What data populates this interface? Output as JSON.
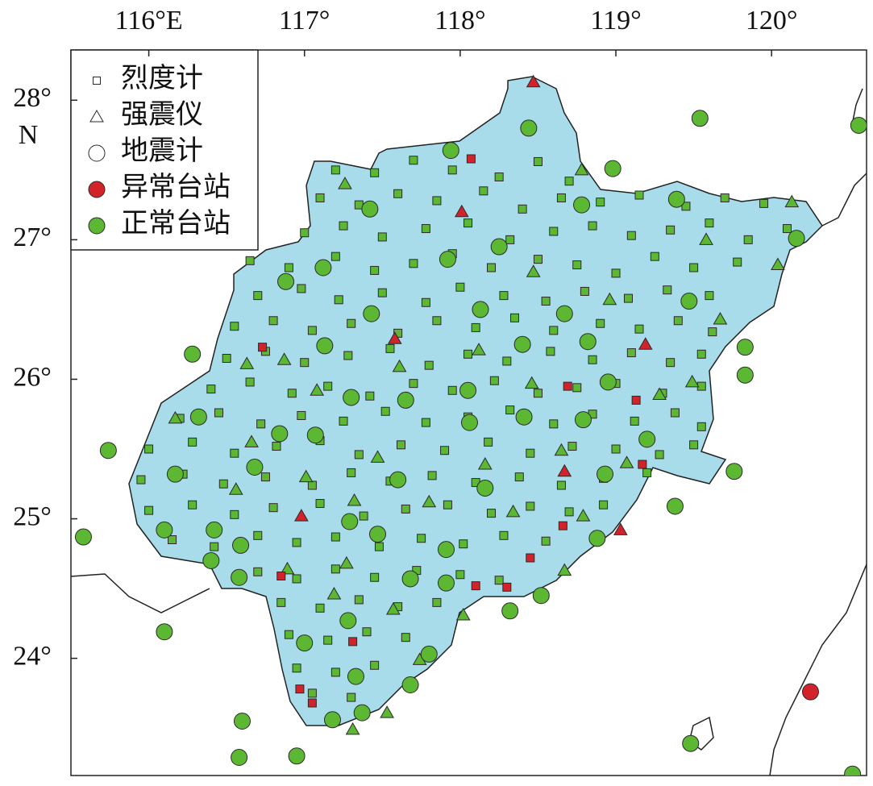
{
  "chart_data": {
    "type": "scatter",
    "xlim": [
      115.5,
      120.61
    ],
    "ylim": [
      23.16,
      28.36
    ],
    "xticks": [
      {
        "value": 116,
        "label": "116°E"
      },
      {
        "value": 117,
        "label": "117°"
      },
      {
        "value": 118,
        "label": "118°"
      },
      {
        "value": 119,
        "label": "119°"
      },
      {
        "value": 120,
        "label": "120°"
      }
    ],
    "yticks": [
      {
        "value": 28,
        "label": "28°"
      },
      {
        "value": 27,
        "label": "27°"
      },
      {
        "value": 26,
        "label": "26°"
      },
      {
        "value": 25,
        "label": "25°"
      },
      {
        "value": 24,
        "label": "24°"
      }
    ],
    "ylabel": "N",
    "legend_position": "upper left",
    "legend": {
      "markers": [
        {
          "name": "烈度计",
          "shape": "square"
        },
        {
          "name": "强震仪",
          "shape": "triangle"
        },
        {
          "name": "地震计",
          "shape": "circle"
        }
      ],
      "statuses": [
        {
          "name": "异常台站",
          "color": "#d2232a"
        },
        {
          "name": "正常台站",
          "color": "#5cb833"
        }
      ]
    },
    "series": [
      {
        "shape": "square",
        "color": "#5cb833",
        "x": [
          117.2,
          117.45,
          117.7,
          117.95,
          118.25,
          118.5,
          118.7,
          117.1,
          117.35,
          117.6,
          117.85,
          118.15,
          118.4,
          118.65,
          118.9,
          119.15,
          119.45,
          119.7,
          119.95,
          117.0,
          117.25,
          117.5,
          117.78,
          118.05,
          118.32,
          118.6,
          118.85,
          119.1,
          119.35,
          119.6,
          119.85,
          120.1,
          116.65,
          116.9,
          117.2,
          117.45,
          117.7,
          117.95,
          118.2,
          118.5,
          118.75,
          119.0,
          119.25,
          119.5,
          119.78,
          116.7,
          116.98,
          117.22,
          117.5,
          117.78,
          118.0,
          118.28,
          118.55,
          118.8,
          119.08,
          119.33,
          119.6,
          116.55,
          116.8,
          117.05,
          117.3,
          117.6,
          117.85,
          118.1,
          118.35,
          118.6,
          118.9,
          119.15,
          119.4,
          119.62,
          116.5,
          116.75,
          117.0,
          117.28,
          117.55,
          117.8,
          118.05,
          118.3,
          118.58,
          118.85,
          119.1,
          119.35,
          119.55,
          116.4,
          116.65,
          116.92,
          117.15,
          117.42,
          117.7,
          117.95,
          118.22,
          118.5,
          118.75,
          119.0,
          119.3,
          119.55,
          116.2,
          116.45,
          116.72,
          116.98,
          117.25,
          117.52,
          117.78,
          118.05,
          118.32,
          118.6,
          118.85,
          119.12,
          119.38,
          119.55,
          116.0,
          116.28,
          116.55,
          116.82,
          117.1,
          117.35,
          117.62,
          117.9,
          118.18,
          118.45,
          118.72,
          119.0,
          119.28,
          119.5,
          115.95,
          116.22,
          116.48,
          116.75,
          117.05,
          117.3,
          117.55,
          117.82,
          118.1,
          118.38,
          118.65,
          118.92,
          119.2,
          116.0,
          116.28,
          116.55,
          116.8,
          117.1,
          117.38,
          117.65,
          117.92,
          118.2,
          118.45,
          118.7,
          118.92,
          116.15,
          116.42,
          116.7,
          116.95,
          117.2,
          117.48,
          117.75,
          118.02,
          118.28,
          118.55,
          116.7,
          116.95,
          117.2,
          117.45,
          117.72,
          118.0,
          118.25,
          116.85,
          117.1,
          117.35,
          117.6,
          117.85,
          116.9,
          117.15,
          117.4,
          117.65,
          116.95,
          117.2,
          117.45,
          117.05,
          117.3
        ],
        "y": [
          27.5,
          27.48,
          27.57,
          27.5,
          27.45,
          27.56,
          27.42,
          27.3,
          27.25,
          27.33,
          27.28,
          27.35,
          27.22,
          27.3,
          27.27,
          27.32,
          27.24,
          27.3,
          27.26,
          27.05,
          27.1,
          27.02,
          27.08,
          27.12,
          27.0,
          27.06,
          27.1,
          27.03,
          27.07,
          27.12,
          27.0,
          27.08,
          26.85,
          26.8,
          26.88,
          26.78,
          26.83,
          26.9,
          26.8,
          26.86,
          26.82,
          26.76,
          26.88,
          26.8,
          26.84,
          26.6,
          26.65,
          26.57,
          26.62,
          26.55,
          26.66,
          26.6,
          26.56,
          26.63,
          26.58,
          26.64,
          26.6,
          26.38,
          26.42,
          26.35,
          26.4,
          26.33,
          26.42,
          26.37,
          26.44,
          26.35,
          26.4,
          26.36,
          26.42,
          26.34,
          26.15,
          26.2,
          26.12,
          26.17,
          26.22,
          26.1,
          26.18,
          26.13,
          26.2,
          26.14,
          26.19,
          26.12,
          26.18,
          25.93,
          25.98,
          25.9,
          25.95,
          25.88,
          25.97,
          25.92,
          25.99,
          25.9,
          25.94,
          25.97,
          25.9,
          25.95,
          25.72,
          25.76,
          25.68,
          25.74,
          25.7,
          25.77,
          25.69,
          25.73,
          25.78,
          25.68,
          25.75,
          25.7,
          25.76,
          25.66,
          25.5,
          25.55,
          25.47,
          25.52,
          25.56,
          25.46,
          25.53,
          25.49,
          25.55,
          25.47,
          25.52,
          25.5,
          25.46,
          25.53,
          25.28,
          25.32,
          25.25,
          25.3,
          25.24,
          25.33,
          25.27,
          25.31,
          25.26,
          25.3,
          25.24,
          25.29,
          25.33,
          25.06,
          25.1,
          25.03,
          25.08,
          25.11,
          25.02,
          25.07,
          25.1,
          25.04,
          25.09,
          25.05,
          25.1,
          24.85,
          24.8,
          24.88,
          24.83,
          24.87,
          24.8,
          24.86,
          24.82,
          24.88,
          24.84,
          24.62,
          24.57,
          24.64,
          24.58,
          24.63,
          24.6,
          24.56,
          24.4,
          24.36,
          24.42,
          24.37,
          24.4,
          24.17,
          24.13,
          24.19,
          24.15,
          23.93,
          23.9,
          23.95,
          23.75,
          23.72
        ]
      },
      {
        "shape": "triangle",
        "color": "#5cb833",
        "x": [
          117.26,
          118.78,
          120.13,
          119.58,
          120.04,
          118.47,
          118.96,
          119.67,
          116.87,
          116.63,
          117.61,
          117.08,
          118.12,
          118.46,
          119.28,
          119.49,
          116.17,
          116.66,
          117.47,
          118.16,
          118.65,
          119.07,
          116.56,
          117.01,
          117.32,
          117.8,
          118.34,
          118.79,
          116.89,
          117.27,
          117.19,
          117.57,
          118.02,
          118.67,
          117.74,
          117.31,
          117.53
        ],
        "y": [
          27.4,
          27.5,
          27.27,
          27.0,
          26.82,
          26.77,
          26.57,
          26.43,
          26.14,
          26.11,
          26.09,
          25.92,
          26.21,
          25.97,
          25.89,
          25.98,
          25.72,
          25.55,
          25.44,
          25.39,
          25.49,
          25.4,
          25.21,
          25.3,
          25.13,
          25.12,
          25.05,
          25.02,
          24.64,
          24.68,
          24.46,
          24.35,
          24.31,
          24.63,
          23.99,
          23.49,
          23.61
        ]
      },
      {
        "shape": "circle",
        "color": "#5cb833",
        "x": [
          118.44,
          119.54,
          120.56,
          117.94,
          118.98,
          118.78,
          117.42,
          119.39,
          120.16,
          118.25,
          117.92,
          117.12,
          116.88,
          118.13,
          117.43,
          118.67,
          119.47,
          116.28,
          117.13,
          118.4,
          118.82,
          119.83,
          118.05,
          117.65,
          117.3,
          118.95,
          119.83,
          118.06,
          118.41,
          118.79,
          116.32,
          116.84,
          117.07,
          115.74,
          116.68,
          119.2,
          116.17,
          117.6,
          118.16,
          118.93,
          119.76,
          119.38,
          117.29,
          116.1,
          116.42,
          115.58,
          116.59,
          117.47,
          118.88,
          116.4,
          116.58,
          117.91,
          117.68,
          117.91,
          116.1,
          117.28,
          118.32,
          118.52,
          117.0,
          117.8,
          117.33,
          117.68,
          116.6,
          116.58,
          116.95,
          119.48,
          120.52,
          117.18,
          117.37
        ],
        "y": [
          27.8,
          27.87,
          27.82,
          27.64,
          27.51,
          27.25,
          27.22,
          27.29,
          27.01,
          26.95,
          26.86,
          26.8,
          26.7,
          26.5,
          26.47,
          26.47,
          26.56,
          26.18,
          26.24,
          26.25,
          26.27,
          26.23,
          25.92,
          25.85,
          25.87,
          25.98,
          26.03,
          25.69,
          25.73,
          25.71,
          25.73,
          25.61,
          25.6,
          25.49,
          25.37,
          25.57,
          25.32,
          25.28,
          25.22,
          25.32,
          25.34,
          25.09,
          24.98,
          24.92,
          24.92,
          24.87,
          24.81,
          24.89,
          24.86,
          24.7,
          24.58,
          24.78,
          24.57,
          24.54,
          24.19,
          24.27,
          24.34,
          24.45,
          24.11,
          24.03,
          23.87,
          23.81,
          23.55,
          23.29,
          23.3,
          23.39,
          23.17,
          23.56,
          23.61
        ]
      },
      {
        "shape": "square",
        "color": "#d2232a",
        "x": [
          118.07,
          116.73,
          118.69,
          119.13,
          119.17,
          118.66,
          118.45,
          118.3,
          118.1,
          117.31,
          116.97,
          117.05,
          116.85
        ],
        "y": [
          27.58,
          26.23,
          25.95,
          25.85,
          25.39,
          24.95,
          24.72,
          24.51,
          24.52,
          24.12,
          23.78,
          23.68,
          24.59
        ]
      },
      {
        "shape": "triangle",
        "color": "#d2232a",
        "x": [
          118.47,
          118.01,
          117.58,
          119.19,
          118.67,
          116.98,
          119.03
        ],
        "y": [
          28.13,
          27.2,
          26.29,
          26.25,
          25.34,
          25.02,
          24.92
        ]
      },
      {
        "shape": "circle",
        "color": "#d2232a",
        "x": [
          120.25
        ],
        "y": [
          23.76
        ]
      }
    ]
  }
}
